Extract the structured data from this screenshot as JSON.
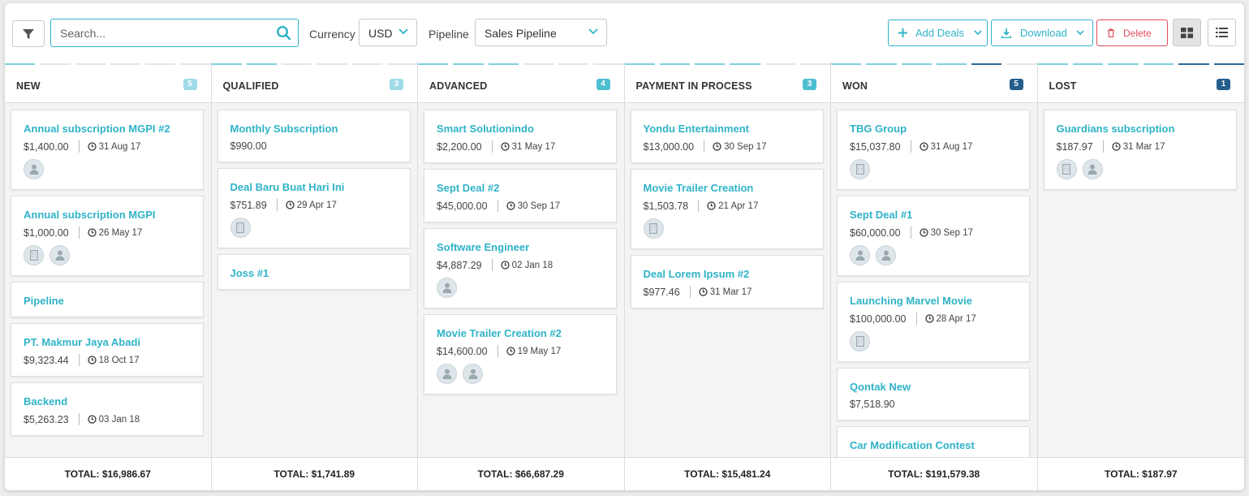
{
  "toolbar": {
    "search_placeholder": "Search...",
    "currency_label": "Currency",
    "currency_value": "USD",
    "pipeline_label": "Pipeline",
    "pipeline_value": "Sales Pipeline",
    "add_deals_label": "Add Deals",
    "download_label": "Download",
    "delete_label": "Delete"
  },
  "columns": [
    {
      "name": "NEW",
      "count": "5",
      "total": "TOTAL: $16,986.67",
      "cards": [
        {
          "title": "Annual subscription MGPI #2",
          "amount": "$1,400.00",
          "date": "31 Aug 17",
          "avatars": [
            "person"
          ]
        },
        {
          "title": "Annual subscription MGPI",
          "amount": "$1,000.00",
          "date": "26 May 17",
          "avatars": [
            "company",
            "person"
          ]
        },
        {
          "title": "Pipeline"
        },
        {
          "title": "PT. Makmur Jaya Abadi",
          "amount": "$9,323.44",
          "date": "18 Oct 17"
        },
        {
          "title": "Backend",
          "amount": "$5,263.23",
          "date": "03 Jan 18"
        }
      ]
    },
    {
      "name": "QUALIFIED",
      "count": "3",
      "total": "TOTAL: $1,741.89",
      "cards": [
        {
          "title": "Monthly Subscription",
          "amount": "$990.00"
        },
        {
          "title": "Deal Baru Buat Hari Ini",
          "amount": "$751.89",
          "date": "29 Apr 17",
          "avatars": [
            "company"
          ]
        },
        {
          "title": "Joss #1"
        }
      ]
    },
    {
      "name": "ADVANCED",
      "count": "4",
      "total": "TOTAL: $66,687.29",
      "cards": [
        {
          "title": "Smart Solutionindo",
          "amount": "$2,200.00",
          "date": "31 May 17"
        },
        {
          "title": "Sept Deal #2",
          "amount": "$45,000.00",
          "date": "30 Sep 17"
        },
        {
          "title": "Software Engineer",
          "amount": "$4,887.29",
          "date": "02 Jan 18",
          "avatars": [
            "person"
          ]
        },
        {
          "title": "Movie Trailer Creation #2",
          "amount": "$14,600.00",
          "date": "19 May 17",
          "avatars": [
            "person",
            "person"
          ]
        }
      ]
    },
    {
      "name": "PAYMENT IN PROCESS",
      "count": "3",
      "total": "TOTAL: $15,481.24",
      "cards": [
        {
          "title": "Yondu Entertainment",
          "amount": "$13,000.00",
          "date": "30 Sep 17"
        },
        {
          "title": "Movie Trailer Creation",
          "amount": "$1,503.78",
          "date": "21 Apr 17",
          "avatars": [
            "company"
          ]
        },
        {
          "title": "Deal Lorem Ipsum #2",
          "amount": "$977.46",
          "date": "31 Mar 17"
        }
      ]
    },
    {
      "name": "WON",
      "count": "5",
      "total": "TOTAL: $191,579.38",
      "cards": [
        {
          "title": "TBG Group",
          "amount": "$15,037.80",
          "date": "31 Aug 17",
          "avatars": [
            "company"
          ]
        },
        {
          "title": "Sept Deal #1",
          "amount": "$60,000.00",
          "date": "30 Sep 17",
          "avatars": [
            "person",
            "person"
          ]
        },
        {
          "title": "Launching Marvel Movie",
          "amount": "$100,000.00",
          "date": "28 Apr 17",
          "avatars": [
            "company"
          ]
        },
        {
          "title": "Qontak New",
          "amount": "$7,518.90"
        },
        {
          "title": "Car Modification Contest"
        }
      ]
    },
    {
      "name": "LOST",
      "count": "1",
      "total": "TOTAL: $187.97",
      "cards": [
        {
          "title": "Guardians subscription",
          "amount": "$187.97",
          "date": "31 Mar 17",
          "avatars": [
            "company",
            "person"
          ]
        }
      ]
    }
  ],
  "colors": {
    "accent": "#2fb3c8",
    "danger": "#e24b5c",
    "badge_light": "#9fdbe7",
    "badge_mid": "#4dbed1",
    "badge_dark": "#235e8d"
  }
}
